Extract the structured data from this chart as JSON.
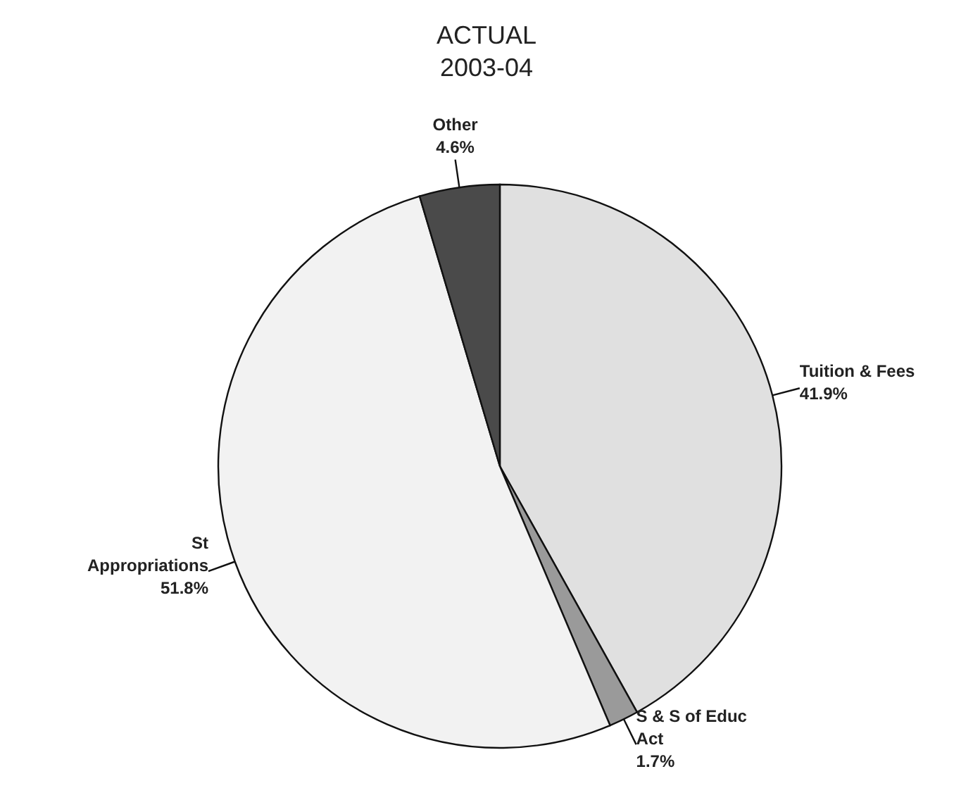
{
  "chart_data": {
    "type": "pie",
    "title": "ACTUAL\n2003-04",
    "categories": [
      "Tuition & Fees",
      "S & S of Educ Act",
      "St Appropriations",
      "Other"
    ],
    "values": [
      41.9,
      1.7,
      51.8,
      4.6
    ],
    "value_labels": [
      "41.9%",
      "1.7%",
      "51.8%",
      "4.6%"
    ],
    "colors": [
      "#e0e0e0",
      "#9a9a9a",
      "#f2f2f2",
      "#4a4a4a"
    ],
    "legend": false
  }
}
